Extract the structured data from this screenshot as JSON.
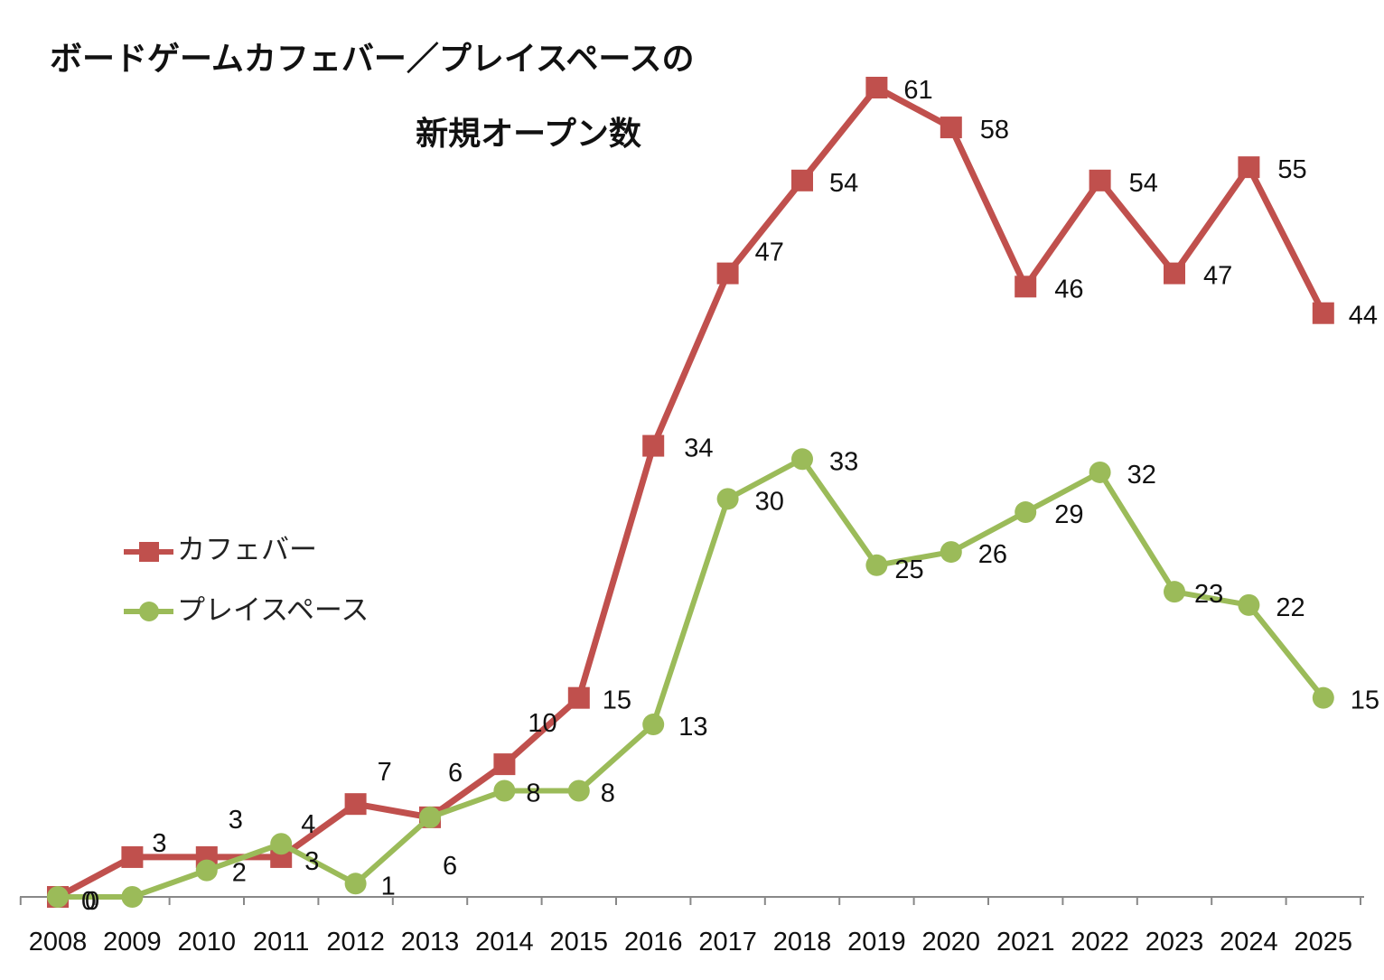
{
  "chart_data": {
    "type": "line",
    "title_line1": "ボードゲームカフェバー／プレイスペースの",
    "title_line2": "新規オープン数",
    "xlabel": "",
    "ylabel": "",
    "ylim": [
      0,
      61
    ],
    "grid": false,
    "legend_position": "middle-left",
    "categories": [
      "2008",
      "2009",
      "2010",
      "2011",
      "2012",
      "2013",
      "2014",
      "2015",
      "2016",
      "2017",
      "2018",
      "2019",
      "2020",
      "2021",
      "2022",
      "2023",
      "2024",
      "2025"
    ],
    "series": [
      {
        "name": "カフェバー",
        "color": "#c0504d",
        "marker": "square",
        "values": [
          0,
          3,
          3,
          3,
          7,
          6,
          10,
          15,
          34,
          47,
          54,
          61,
          58,
          46,
          54,
          47,
          55,
          44
        ]
      },
      {
        "name": "プレイスペース",
        "color": "#9bbb59",
        "marker": "circle",
        "values": [
          0,
          0,
          2,
          4,
          1,
          6,
          8,
          8,
          13,
          30,
          33,
          25,
          26,
          29,
          32,
          23,
          22,
          15
        ]
      }
    ]
  }
}
